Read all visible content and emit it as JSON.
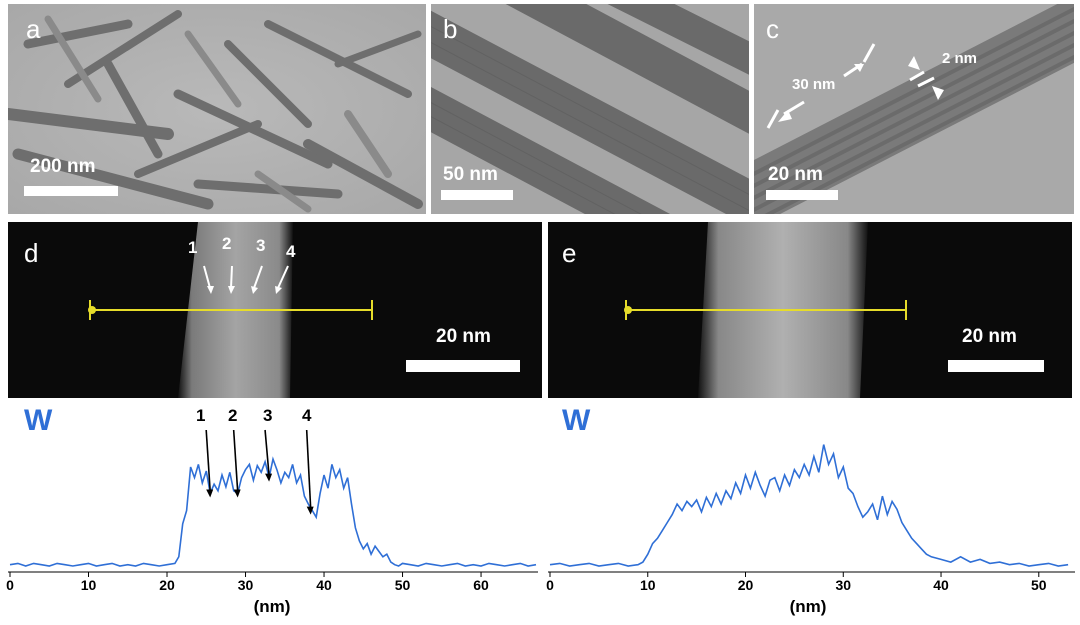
{
  "panels": {
    "a": {
      "label": "a",
      "scale": "200 nm"
    },
    "b": {
      "label": "b",
      "scale": "50 nm"
    },
    "c": {
      "label": "c",
      "scale": "20 nm",
      "ann_width": "30 nm",
      "ann_pore": "2 nm"
    },
    "d": {
      "label": "d",
      "scale": "20 nm",
      "markers": [
        "1",
        "2",
        "3",
        "4"
      ]
    },
    "e": {
      "label": "e",
      "scale": "20 nm"
    }
  },
  "line_color": "#e6dc2a",
  "plot_color": "#2f6fd6",
  "chart_data": [
    {
      "type": "line",
      "title": "W",
      "xlabel": "(nm)",
      "ylabel": "",
      "xlim": [
        0,
        67
      ],
      "xticks": [
        0,
        10,
        20,
        30,
        40,
        50,
        60
      ],
      "markers": [
        {
          "label": "1",
          "x": 25.5
        },
        {
          "label": "2",
          "x": 29
        },
        {
          "label": "3",
          "x": 33
        },
        {
          "label": "4",
          "x": 38.3
        }
      ],
      "x": [
        0,
        1,
        2,
        3,
        4,
        5,
        6,
        7,
        8,
        9,
        10,
        11,
        12,
        13,
        14,
        15,
        16,
        17,
        18,
        19,
        20,
        21,
        21.5,
        22,
        22.5,
        23,
        23.5,
        24,
        24.5,
        25,
        25.5,
        26,
        26.5,
        27,
        27.5,
        28,
        28.5,
        29,
        29.5,
        30,
        30.5,
        31,
        31.5,
        32,
        32.5,
        33,
        33.5,
        34,
        34.5,
        35,
        35.5,
        36,
        36.5,
        37,
        37.5,
        38,
        38.5,
        39,
        39.5,
        40,
        40.5,
        41,
        41.5,
        42,
        42.5,
        43,
        43.5,
        44,
        44.5,
        45,
        45.5,
        46,
        46.5,
        47,
        47.5,
        48,
        48.5,
        49,
        49.5,
        50,
        51,
        52,
        53,
        54,
        55,
        56,
        57,
        58,
        59,
        60,
        61,
        62,
        63,
        64,
        65,
        66,
        67
      ],
      "y": [
        0.04,
        0.05,
        0.03,
        0.05,
        0.04,
        0.03,
        0.05,
        0.04,
        0.03,
        0.04,
        0.05,
        0.03,
        0.04,
        0.05,
        0.03,
        0.04,
        0.03,
        0.05,
        0.04,
        0.03,
        0.04,
        0.05,
        0.1,
        0.35,
        0.45,
        0.78,
        0.7,
        0.8,
        0.66,
        0.75,
        0.58,
        0.65,
        0.6,
        0.72,
        0.63,
        0.74,
        0.6,
        0.58,
        0.7,
        0.76,
        0.8,
        0.68,
        0.79,
        0.74,
        0.82,
        0.7,
        0.84,
        0.76,
        0.66,
        0.74,
        0.7,
        0.8,
        0.66,
        0.72,
        0.56,
        0.5,
        0.45,
        0.4,
        0.58,
        0.72,
        0.62,
        0.8,
        0.7,
        0.76,
        0.62,
        0.7,
        0.5,
        0.32,
        0.22,
        0.16,
        0.2,
        0.12,
        0.18,
        0.14,
        0.1,
        0.12,
        0.06,
        0.04,
        0.03,
        0.05,
        0.04,
        0.03,
        0.05,
        0.04,
        0.03,
        0.04,
        0.05,
        0.03,
        0.04,
        0.03,
        0.05,
        0.04,
        0.03,
        0.04,
        0.05,
        0.03,
        0.04
      ]
    },
    {
      "type": "line",
      "title": "W",
      "xlabel": "(nm)",
      "ylabel": "",
      "xlim": [
        0,
        53.5
      ],
      "xticks": [
        0,
        10,
        20,
        30,
        40,
        50
      ],
      "x": [
        0,
        1,
        2,
        3,
        4,
        5,
        6,
        7,
        8,
        9,
        9.5,
        10,
        10.5,
        11,
        11.5,
        12,
        12.5,
        13,
        13.5,
        14,
        14.5,
        15,
        15.5,
        16,
        16.5,
        17,
        17.5,
        18,
        18.5,
        19,
        19.5,
        20,
        20.5,
        21,
        21.5,
        22,
        22.5,
        23,
        23.5,
        24,
        24.5,
        25,
        25.5,
        26,
        26.5,
        27,
        27.5,
        28,
        28.5,
        29,
        29.5,
        30,
        30.5,
        31,
        31.5,
        32,
        32.5,
        33,
        33.5,
        34,
        34.5,
        35,
        35.5,
        36,
        36.5,
        37,
        37.5,
        38,
        38.5,
        39,
        40,
        41,
        42,
        43,
        44,
        45,
        46,
        47,
        48,
        49,
        50,
        51,
        52,
        53
      ],
      "y": [
        0.04,
        0.05,
        0.03,
        0.04,
        0.05,
        0.03,
        0.04,
        0.05,
        0.03,
        0.04,
        0.06,
        0.12,
        0.2,
        0.24,
        0.3,
        0.36,
        0.42,
        0.5,
        0.45,
        0.52,
        0.48,
        0.53,
        0.44,
        0.55,
        0.48,
        0.58,
        0.5,
        0.6,
        0.54,
        0.66,
        0.58,
        0.72,
        0.62,
        0.74,
        0.64,
        0.56,
        0.68,
        0.7,
        0.6,
        0.72,
        0.64,
        0.76,
        0.7,
        0.8,
        0.72,
        0.86,
        0.74,
        0.95,
        0.8,
        0.88,
        0.7,
        0.78,
        0.62,
        0.58,
        0.48,
        0.4,
        0.44,
        0.5,
        0.38,
        0.56,
        0.42,
        0.52,
        0.46,
        0.36,
        0.3,
        0.24,
        0.2,
        0.16,
        0.12,
        0.1,
        0.08,
        0.06,
        0.1,
        0.06,
        0.08,
        0.05,
        0.06,
        0.04,
        0.05,
        0.03,
        0.04,
        0.05,
        0.03,
        0.04
      ]
    }
  ]
}
